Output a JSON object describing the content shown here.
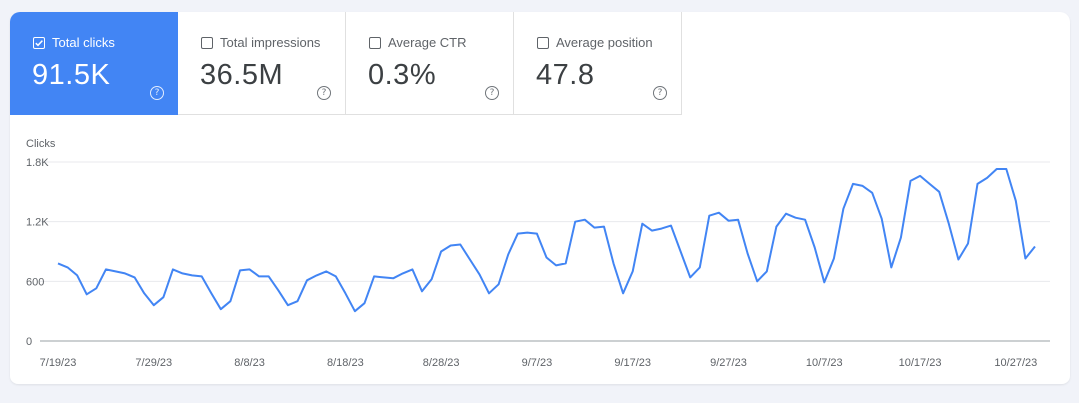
{
  "metrics": [
    {
      "label": "Total clicks",
      "value": "91.5K",
      "help": "?",
      "active": true
    },
    {
      "label": "Total impressions",
      "value": "36.5M",
      "help": "?",
      "active": false
    },
    {
      "label": "Average CTR",
      "value": "0.3%",
      "help": "?",
      "active": false
    },
    {
      "label": "Average position",
      "value": "47.8",
      "help": "?",
      "active": false
    }
  ],
  "colors": {
    "accent": "#4285f4",
    "line": "#4285f4",
    "grid": "#e8eaed",
    "axis": "#9aa0a6",
    "text": "#5f6368"
  },
  "chart_data": {
    "type": "line",
    "title": "",
    "ylabel": "Clicks",
    "xlabel": "",
    "ylim": [
      0,
      1800
    ],
    "yticks": [
      0,
      600,
      1200,
      1800
    ],
    "ytick_labels": [
      "0",
      "600",
      "1.2K",
      "1.8K"
    ],
    "xtick_labels": [
      "7/19/23",
      "7/29/23",
      "8/8/23",
      "8/18/23",
      "8/28/23",
      "9/7/23",
      "9/17/23",
      "9/27/23",
      "10/7/23",
      "10/17/23",
      "10/27/23"
    ],
    "xtick_indices": [
      0,
      10,
      20,
      30,
      40,
      50,
      60,
      70,
      80,
      90,
      100
    ],
    "series": [
      {
        "name": "Clicks",
        "values": [
          780,
          740,
          660,
          470,
          530,
          720,
          700,
          680,
          640,
          480,
          360,
          440,
          720,
          680,
          660,
          650,
          480,
          320,
          400,
          710,
          720,
          650,
          650,
          510,
          360,
          400,
          610,
          660,
          700,
          650,
          480,
          300,
          380,
          650,
          640,
          630,
          680,
          720,
          500,
          620,
          900,
          960,
          970,
          820,
          670,
          480,
          570,
          870,
          1080,
          1090,
          1080,
          840,
          760,
          780,
          1200,
          1220,
          1140,
          1150,
          780,
          480,
          700,
          1180,
          1110,
          1130,
          1160,
          900,
          640,
          740,
          1260,
          1290,
          1210,
          1220,
          880,
          600,
          700,
          1150,
          1280,
          1240,
          1220,
          940,
          590,
          830,
          1330,
          1580,
          1560,
          1490,
          1230,
          740,
          1040,
          1610,
          1660,
          1580,
          1500,
          1180,
          820,
          980,
          1580,
          1640,
          1730,
          1730,
          1410,
          830,
          950
        ]
      }
    ]
  }
}
